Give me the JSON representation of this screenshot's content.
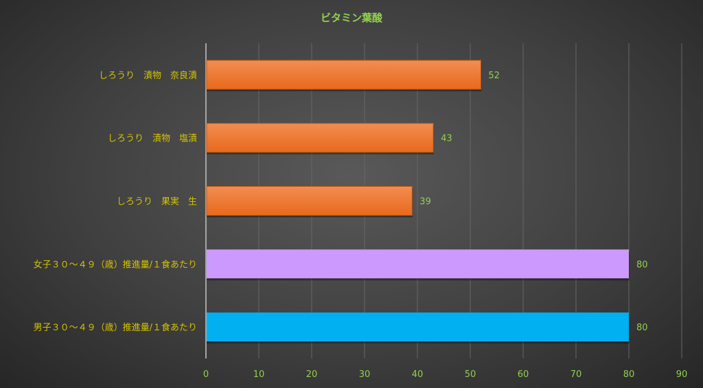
{
  "chart_data": {
    "type": "bar",
    "orientation": "horizontal",
    "title": "ビタミン葉酸",
    "categories": [
      "しろうり　漬物　奈良漬",
      "しろうり　漬物　塩漬",
      "しろうり　果実　生",
      "女子３０～４９（歳）推進量/１食あたり",
      "男子３０～４９（歳）推進量/１食あたり"
    ],
    "values": [
      52,
      43,
      39,
      80,
      80
    ],
    "bar_colors": [
      "#ed7d31",
      "#ed7d31",
      "#ed7d31",
      "#cc99ff",
      "#00b0f0"
    ],
    "xlim": [
      0,
      90
    ],
    "xticks": [
      "0",
      "10",
      "20",
      "30",
      "40",
      "50",
      "60",
      "70",
      "80",
      "90"
    ],
    "grid": true,
    "data_labels": [
      "52",
      "43",
      "39",
      "80",
      "80"
    ],
    "colors": {
      "title": "#92d050",
      "category_labels": "#d4c400",
      "tick_labels": "#92d050",
      "data_labels": "#92d050"
    }
  }
}
